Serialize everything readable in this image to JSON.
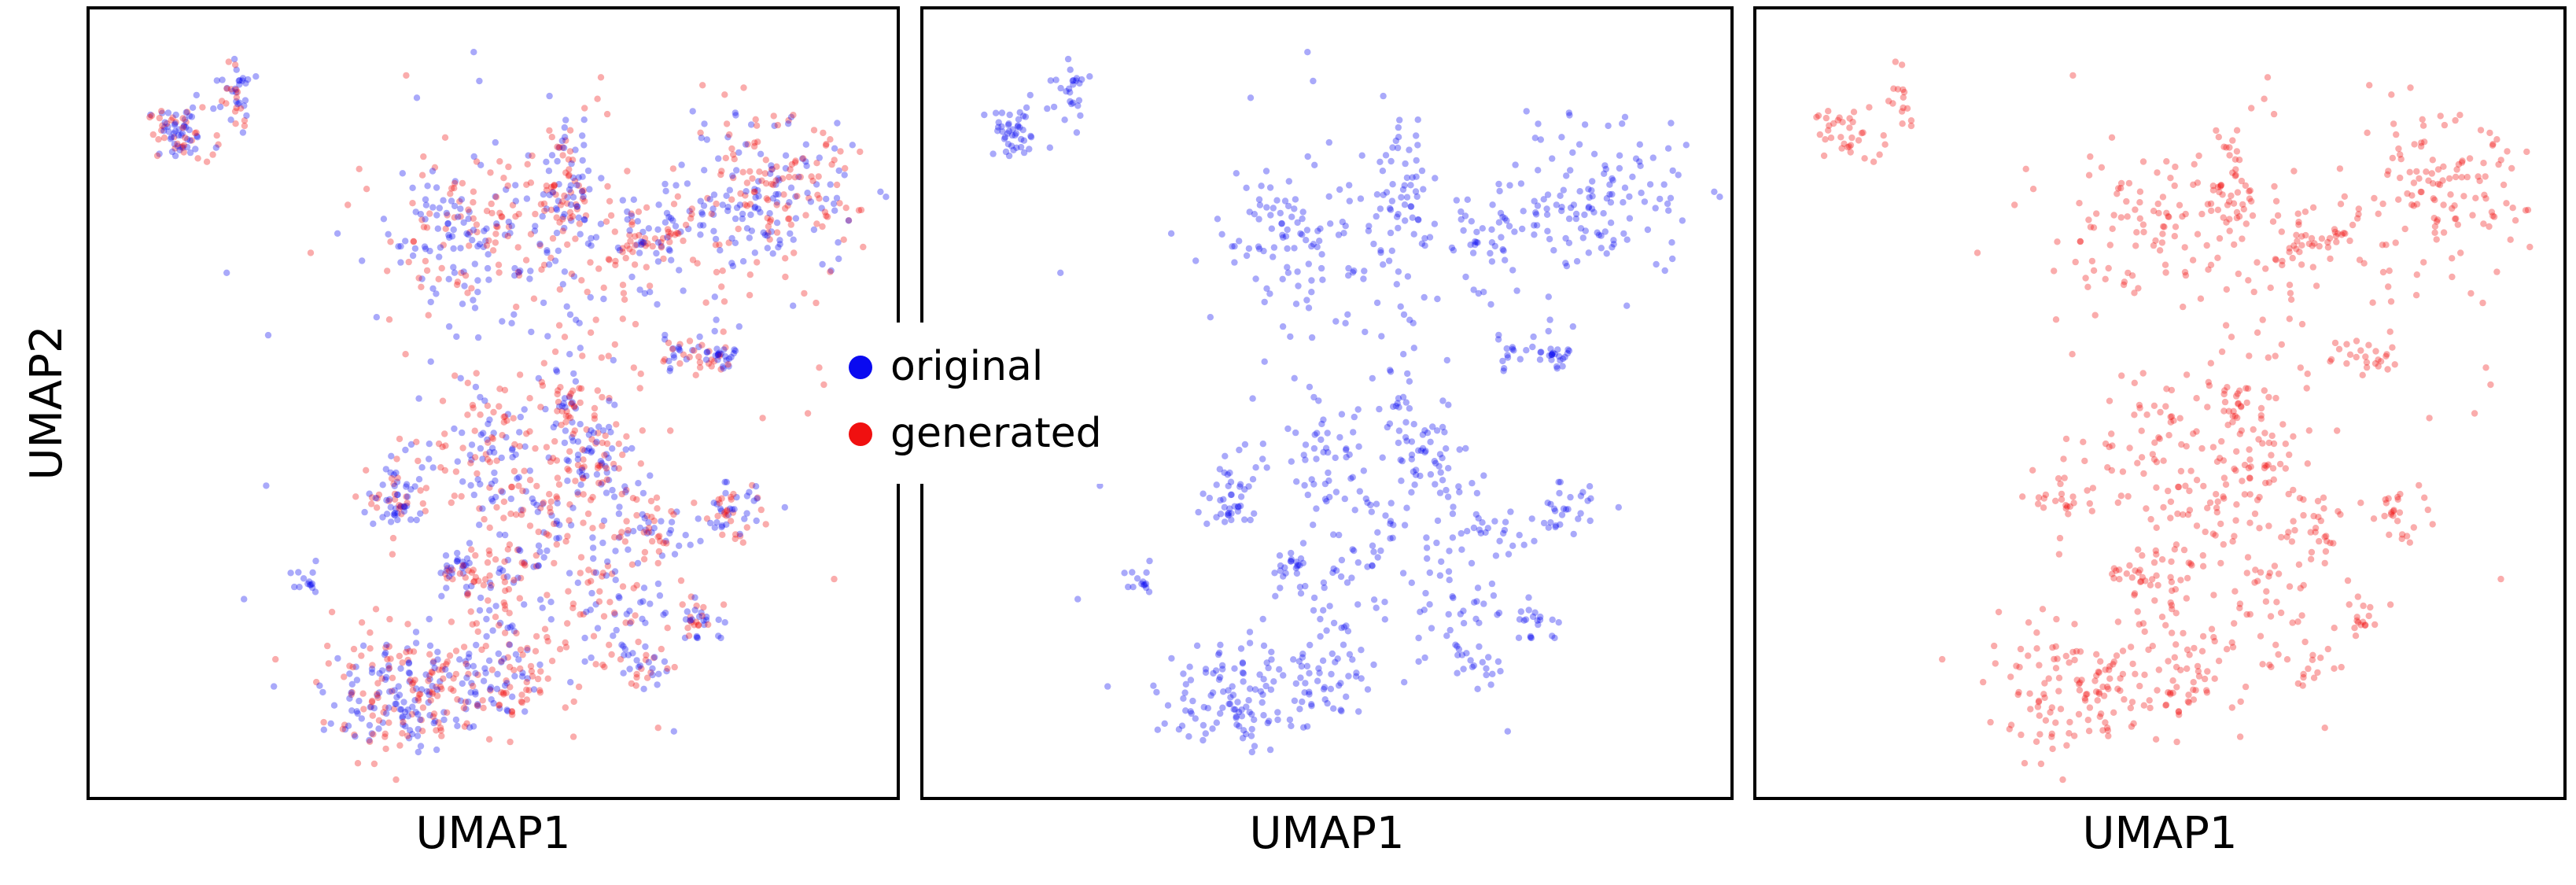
{
  "chart_data": {
    "type": "scatter",
    "layout": "three panels, shared axes",
    "xlabel": "UMAP1",
    "ylabel": "UMAP2",
    "ticks": "none",
    "grid": false,
    "legend": {
      "placement": "center, overlapping the gap between panel 1 and panel 2",
      "entries": [
        {
          "label": "original",
          "color": "#0a0af0"
        },
        {
          "label": "generated",
          "color": "#f01010"
        }
      ]
    },
    "point_alpha": 0.35,
    "series": [
      {
        "label": "original",
        "color": "#0a0af0"
      },
      {
        "label": "generated",
        "color": "#f01010"
      }
    ],
    "panels": [
      {
        "shows": [
          "original",
          "generated"
        ],
        "xlabel": "UMAP1",
        "ylabel": "UMAP2"
      },
      {
        "shows": [
          "original"
        ],
        "xlabel": "UMAP1"
      },
      {
        "shows": [
          "generated"
        ],
        "xlabel": "UMAP1"
      }
    ],
    "xlim": [
      0,
      1
    ],
    "ylim": [
      0,
      1
    ],
    "clusters": [
      {
        "x": 0.08,
        "y": 0.87,
        "sx": 0.022,
        "sy": 0.018,
        "n_original": 45,
        "n_generated": 35
      },
      {
        "x": 0.155,
        "y": 0.92,
        "sx": 0.01,
        "sy": 0.025,
        "n_original": 25,
        "n_generated": 15
      },
      {
        "x": 0.47,
        "y": 0.74,
        "sx": 0.055,
        "sy": 0.05,
        "n_original": 90,
        "n_generated": 80
      },
      {
        "x": 0.6,
        "y": 0.8,
        "sx": 0.02,
        "sy": 0.045,
        "n_original": 50,
        "n_generated": 40
      },
      {
        "x": 0.7,
        "y": 0.73,
        "sx": 0.05,
        "sy": 0.03,
        "n_original": 50,
        "n_generated": 50
      },
      {
        "x": 0.87,
        "y": 0.78,
        "sx": 0.06,
        "sy": 0.055,
        "n_original": 120,
        "n_generated": 120
      },
      {
        "x": 0.61,
        "y": 0.56,
        "sx": 0.06,
        "sy": 0.12,
        "n_original": 35,
        "n_generated": 35
      },
      {
        "x": 0.76,
        "y": 0.57,
        "sx": 0.03,
        "sy": 0.012,
        "n_original": 18,
        "n_generated": 18
      },
      {
        "x": 0.81,
        "y": 0.56,
        "sx": 0.012,
        "sy": 0.012,
        "n_original": 18,
        "n_generated": 8
      },
      {
        "x": 0.6,
        "y": 0.5,
        "sx": 0.01,
        "sy": 0.01,
        "n_original": 8,
        "n_generated": 14
      },
      {
        "x": 0.49,
        "y": 0.45,
        "sx": 0.035,
        "sy": 0.05,
        "n_original": 40,
        "n_generated": 35
      },
      {
        "x": 0.375,
        "y": 0.37,
        "sx": 0.022,
        "sy": 0.024,
        "n_original": 40,
        "n_generated": 25
      },
      {
        "x": 0.64,
        "y": 0.42,
        "sx": 0.025,
        "sy": 0.03,
        "n_original": 35,
        "n_generated": 25
      },
      {
        "x": 0.57,
        "y": 0.35,
        "sx": 0.05,
        "sy": 0.07,
        "n_original": 60,
        "n_generated": 70
      },
      {
        "x": 0.82,
        "y": 0.35,
        "sx": 0.02,
        "sy": 0.02,
        "n_original": 30,
        "n_generated": 25
      },
      {
        "x": 0.71,
        "y": 0.32,
        "sx": 0.03,
        "sy": 0.02,
        "n_original": 25,
        "n_generated": 25
      },
      {
        "x": 0.25,
        "y": 0.25,
        "sx": 0.01,
        "sy": 0.01,
        "n_original": 14,
        "n_generated": 0
      },
      {
        "x": 0.45,
        "y": 0.27,
        "sx": 0.015,
        "sy": 0.012,
        "n_original": 18,
        "n_generated": 10
      },
      {
        "x": 0.5,
        "y": 0.22,
        "sx": 0.03,
        "sy": 0.05,
        "n_original": 30,
        "n_generated": 40
      },
      {
        "x": 0.66,
        "y": 0.22,
        "sx": 0.035,
        "sy": 0.04,
        "n_original": 30,
        "n_generated": 30
      },
      {
        "x": 0.78,
        "y": 0.2,
        "sx": 0.02,
        "sy": 0.015,
        "n_original": 20,
        "n_generated": 15
      },
      {
        "x": 0.7,
        "y": 0.14,
        "sx": 0.015,
        "sy": 0.015,
        "n_original": 18,
        "n_generated": 12
      },
      {
        "x": 0.39,
        "y": 0.1,
        "sx": 0.06,
        "sy": 0.04,
        "n_original": 120,
        "n_generated": 120
      },
      {
        "x": 0.52,
        "y": 0.12,
        "sx": 0.04,
        "sy": 0.03,
        "n_original": 30,
        "n_generated": 45
      },
      {
        "x": 0.55,
        "y": 0.55,
        "sx": 0.15,
        "sy": 0.25,
        "n_original": 60,
        "n_generated": 110
      }
    ]
  }
}
